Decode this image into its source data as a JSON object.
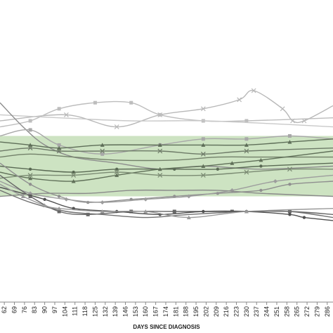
{
  "chart_data": {
    "type": "line",
    "title": "",
    "xlabel": "DAYS SINCE DIAGNOSIS",
    "ylabel": "",
    "x_ticks": [
      62,
      69,
      76,
      83,
      90,
      97,
      104,
      111,
      118,
      125,
      132,
      139,
      146,
      153,
      160,
      167,
      174,
      181,
      188,
      195,
      202,
      209,
      216,
      223,
      230,
      237,
      244,
      251,
      258,
      265,
      272,
      279,
      286
    ],
    "x_tick_labels": [
      "62",
      "69",
      "76",
      "83",
      "90",
      "97",
      "104",
      "111",
      "118",
      "125",
      "132",
      "139",
      "146",
      "153",
      "160",
      "167",
      "174",
      "181",
      "188",
      "195",
      "202",
      "209",
      "216",
      "223",
      "230",
      "237",
      "244",
      "251",
      "258",
      "265",
      "272",
      "279",
      "286"
    ],
    "xlim": [
      59,
      290
    ],
    "ylim": [
      0,
      100
    ],
    "grid": false,
    "legend": "none",
    "reference_band": {
      "low": 35,
      "high": 55,
      "color": "#bcd9ad"
    },
    "series": [
      {
        "color": "#b8b8b8",
        "marker": "x",
        "points": [
          [
            59,
            60
          ],
          [
            105,
            62
          ],
          [
            140,
            58
          ],
          [
            170,
            62
          ],
          [
            200,
            64
          ],
          [
            225,
            67
          ],
          [
            235,
            70
          ],
          [
            255,
            64
          ],
          [
            262,
            60
          ],
          [
            270,
            60
          ],
          [
            290,
            65
          ]
        ]
      },
      {
        "color": "#bdbdbd",
        "marker": "square",
        "points": [
          [
            59,
            58
          ],
          [
            80,
            60
          ],
          [
            100,
            64
          ],
          [
            125,
            66
          ],
          [
            150,
            66
          ],
          [
            170,
            62
          ],
          [
            200,
            60
          ],
          [
            230,
            60
          ],
          [
            290,
            61
          ]
        ]
      },
      {
        "color": "#c9c9c9",
        "marker": "none",
        "points": [
          [
            59,
            62
          ],
          [
            100,
            61
          ],
          [
            150,
            60
          ],
          [
            200,
            60
          ],
          [
            250,
            59
          ],
          [
            290,
            58
          ]
        ]
      },
      {
        "color": "#8c8c8c",
        "marker": "none",
        "points": [
          [
            59,
            66
          ],
          [
            75,
            58
          ],
          [
            90,
            52
          ],
          [
            110,
            48
          ],
          [
            140,
            46
          ],
          [
            170,
            44
          ],
          [
            200,
            45
          ],
          [
            240,
            44
          ],
          [
            290,
            45
          ]
        ]
      },
      {
        "color": "#a8a8a8",
        "marker": "square",
        "points": [
          [
            59,
            55
          ],
          [
            80,
            57
          ],
          [
            100,
            52
          ],
          [
            130,
            49
          ],
          [
            170,
            52
          ],
          [
            200,
            54
          ],
          [
            230,
            54
          ],
          [
            260,
            55
          ],
          [
            290,
            54
          ]
        ]
      },
      {
        "color": "#5e6e58",
        "marker": "triangle",
        "points": [
          [
            59,
            53
          ],
          [
            80,
            52
          ],
          [
            100,
            51
          ],
          [
            130,
            52
          ],
          [
            170,
            52
          ],
          [
            200,
            52
          ],
          [
            230,
            52
          ],
          [
            260,
            53
          ],
          [
            290,
            54
          ]
        ]
      },
      {
        "color": "#6d7a67",
        "marker": "x",
        "points": [
          [
            59,
            50
          ],
          [
            80,
            51
          ],
          [
            100,
            50
          ],
          [
            130,
            50
          ],
          [
            170,
            50
          ],
          [
            200,
            49
          ],
          [
            230,
            50
          ],
          [
            290,
            51
          ]
        ]
      },
      {
        "color": "#728069",
        "marker": "none",
        "points": [
          [
            59,
            48
          ],
          [
            80,
            49
          ],
          [
            110,
            48
          ],
          [
            140,
            47
          ],
          [
            180,
            47
          ],
          [
            210,
            48
          ],
          [
            240,
            48
          ],
          [
            290,
            48
          ]
        ]
      },
      {
        "color": "#5a6a54",
        "marker": "circle",
        "points": [
          [
            59,
            45
          ],
          [
            80,
            44
          ],
          [
            110,
            43
          ],
          [
            140,
            44
          ],
          [
            180,
            44
          ],
          [
            210,
            44
          ],
          [
            240,
            45
          ],
          [
            290,
            46
          ]
        ]
      },
      {
        "color": "#607059",
        "marker": "triangle",
        "points": [
          [
            59,
            43
          ],
          [
            80,
            41
          ],
          [
            110,
            40
          ],
          [
            140,
            42
          ],
          [
            170,
            44
          ],
          [
            200,
            45
          ],
          [
            220,
            46
          ],
          [
            240,
            47
          ],
          [
            290,
            50
          ]
        ]
      },
      {
        "color": "#7a8a72",
        "marker": "x",
        "points": [
          [
            59,
            41
          ],
          [
            80,
            42
          ],
          [
            110,
            42
          ],
          [
            140,
            43
          ],
          [
            170,
            42
          ],
          [
            200,
            42
          ],
          [
            230,
            43
          ],
          [
            260,
            44
          ],
          [
            290,
            44
          ]
        ]
      },
      {
        "color": "#8f8f8f",
        "marker": "circle",
        "points": [
          [
            59,
            46
          ],
          [
            80,
            39
          ],
          [
            100,
            35
          ],
          [
            120,
            33
          ],
          [
            150,
            34
          ],
          [
            180,
            35
          ],
          [
            210,
            36
          ],
          [
            240,
            37
          ],
          [
            260,
            39
          ],
          [
            290,
            40
          ]
        ]
      },
      {
        "color": "#9d9d9d",
        "marker": "diamond",
        "points": [
          [
            59,
            40
          ],
          [
            80,
            36
          ],
          [
            105,
            34
          ],
          [
            130,
            33
          ],
          [
            160,
            34
          ],
          [
            190,
            35
          ],
          [
            220,
            37
          ],
          [
            250,
            40
          ],
          [
            290,
            42
          ]
        ]
      },
      {
        "color": "#666666",
        "marker": "square",
        "points": [
          [
            59,
            42
          ],
          [
            80,
            35
          ],
          [
            100,
            30
          ],
          [
            120,
            29
          ],
          [
            150,
            30
          ],
          [
            180,
            30
          ],
          [
            220,
            30
          ],
          [
            260,
            30
          ],
          [
            290,
            29
          ]
        ]
      },
      {
        "color": "#707070",
        "marker": "none",
        "points": [
          [
            59,
            37
          ],
          [
            80,
            33
          ],
          [
            105,
            30
          ],
          [
            130,
            29
          ],
          [
            160,
            28
          ],
          [
            190,
            29
          ],
          [
            230,
            30
          ],
          [
            260,
            30
          ],
          [
            290,
            28
          ]
        ]
      },
      {
        "color": "#4f4f4f",
        "marker": "circle",
        "points": [
          [
            59,
            38
          ],
          [
            90,
            34
          ],
          [
            110,
            31
          ],
          [
            140,
            30
          ],
          [
            170,
            29
          ],
          [
            200,
            30
          ],
          [
            230,
            30
          ],
          [
            260,
            29
          ],
          [
            270,
            28
          ],
          [
            290,
            27
          ]
        ]
      },
      {
        "color": "#9a9a9a",
        "marker": "triangle",
        "points": [
          [
            59,
            39
          ],
          [
            75,
            35
          ],
          [
            90,
            32
          ],
          [
            100,
            31
          ],
          [
            130,
            30
          ],
          [
            160,
            30
          ],
          [
            190,
            28
          ],
          [
            230,
            30
          ],
          [
            290,
            31
          ]
        ]
      },
      {
        "color": "#8a8a8a",
        "marker": "none",
        "points": [
          [
            59,
            35
          ],
          [
            90,
            36
          ],
          [
            120,
            36
          ],
          [
            150,
            37
          ],
          [
            180,
            37
          ],
          [
            210,
            37
          ],
          [
            240,
            36
          ],
          [
            290,
            35
          ]
        ]
      }
    ]
  }
}
